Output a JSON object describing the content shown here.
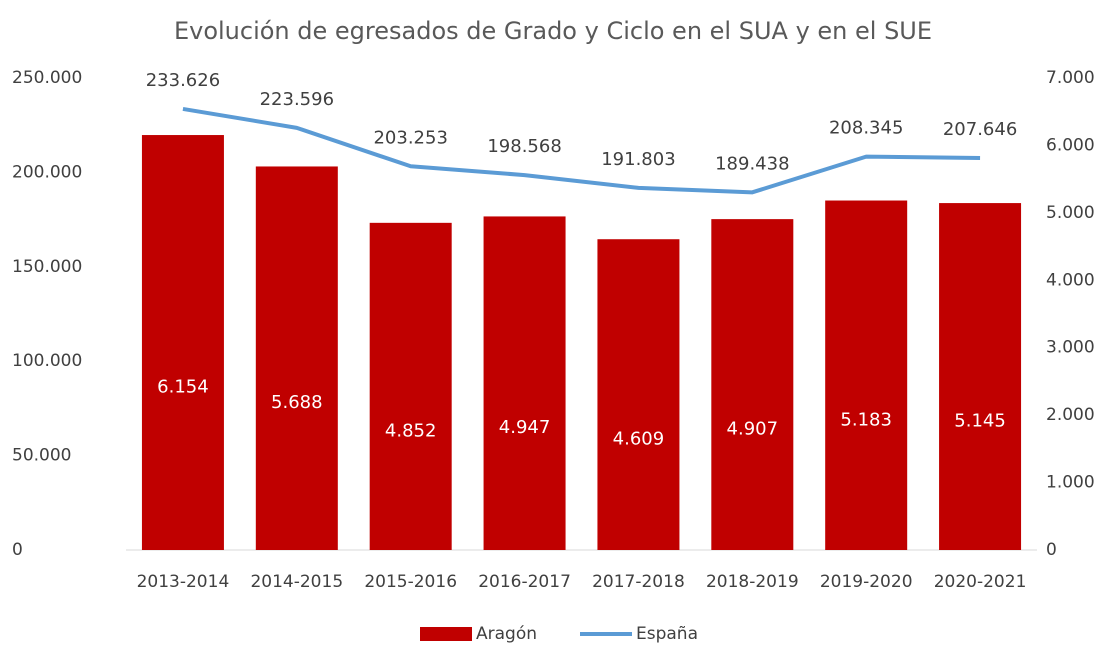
{
  "chart_data": {
    "type": "combo",
    "title": "Evolución de egresados de Grado y Ciclo en el SUA y en el SUE",
    "categories": [
      "2013-2014",
      "2014-2015",
      "2015-2016",
      "2016-2017",
      "2017-2018",
      "2018-2019",
      "2019-2020",
      "2020-2021"
    ],
    "series": [
      {
        "name": "Aragón",
        "type": "bar",
        "axis": "y2",
        "color": "#c00000",
        "values": [
          6154,
          5688,
          4852,
          4947,
          4609,
          4907,
          5183,
          5145
        ],
        "value_labels": [
          "6.154",
          "5.688",
          "4.852",
          "4.947",
          "4.609",
          "4.907",
          "5.183",
          "5.145"
        ]
      },
      {
        "name": "España",
        "type": "line",
        "color": "#5b9bd5",
        "values": [
          233626,
          223596,
          203253,
          198568,
          191803,
          189438,
          208345,
          207646
        ],
        "value_labels": [
          "233.626",
          "223.596",
          "203.253",
          "198.568",
          "191.803",
          "189.438",
          "208.345",
          "207.646"
        ]
      }
    ],
    "ylim": [
      0,
      250000
    ],
    "yticks": [
      0,
      {
        "value": 50000,
        "label": "50.000"
      },
      {
        "value": 100000,
        "label": "100.000"
      },
      {
        "value": 150000,
        "label": "150.000"
      },
      {
        "value": 200000,
        "label": "200.000"
      },
      {
        "value": 250000,
        "label": "250.000"
      }
    ],
    "y2lim": [
      0,
      7000
    ],
    "y2ticks": [
      0,
      {
        "value": 1000,
        "label": "1.000"
      },
      {
        "value": 2000,
        "label": "2.000"
      },
      {
        "value": 3000,
        "label": "3.000"
      },
      {
        "value": 4000,
        "label": "4.000"
      },
      {
        "value": 5000,
        "label": "5.000"
      },
      {
        "value": 6000,
        "label": "6.000"
      },
      {
        "value": 7000,
        "label": "7.000"
      }
    ],
    "legend": "bottom"
  }
}
